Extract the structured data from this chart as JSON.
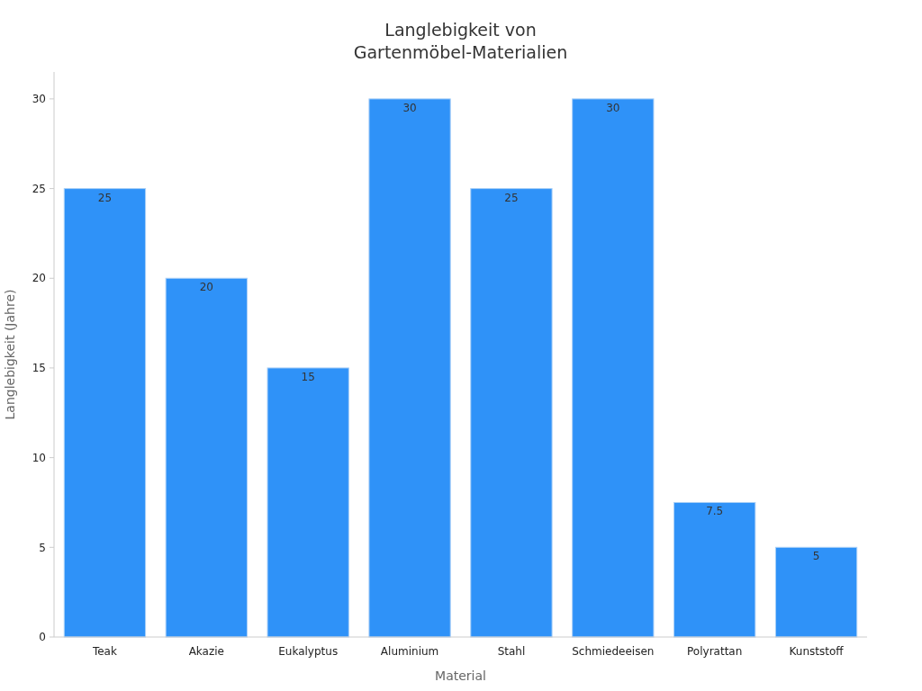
{
  "chart_data": {
    "type": "bar",
    "title": "Langlebigkeit von\nGartenmöbel-Materialien",
    "xlabel": "Material",
    "ylabel": "Langlebigkeit (Jahre)",
    "categories": [
      "Teak",
      "Akazie",
      "Eukalyptus",
      "Aluminium",
      "Stahl",
      "Schmiedeeisen",
      "Polyrattan",
      "Kunststoff"
    ],
    "values": [
      25,
      20,
      15,
      30,
      25,
      30,
      7.5,
      5
    ],
    "color": "#2f92f8",
    "ylim": [
      0,
      31.5
    ],
    "yticks": [
      0,
      5,
      10,
      15,
      20,
      25,
      30
    ],
    "grid": false,
    "data_labels": true
  }
}
